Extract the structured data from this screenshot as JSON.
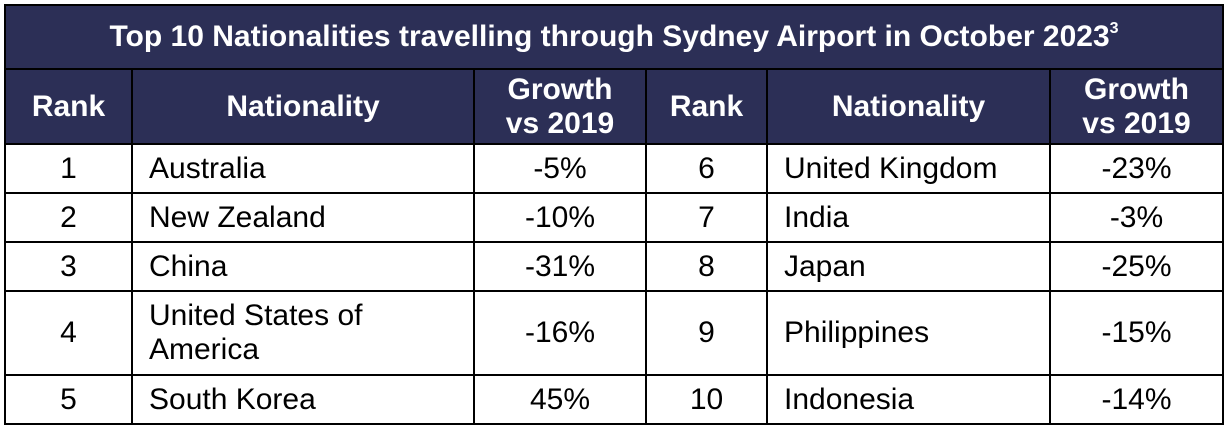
{
  "table": {
    "title": "Top 10 Nationalities travelling through Sydney Airport in October 2023",
    "title_footnote": "3",
    "headers": {
      "rank": "Rank",
      "nationality": "Nationality",
      "growth_line1": "Growth",
      "growth_line2": "vs 2019"
    },
    "rows": [
      {
        "left": {
          "rank": "1",
          "nationality": "Australia",
          "growth": "-5%"
        },
        "right": {
          "rank": "6",
          "nationality": "United Kingdom",
          "growth": "-23%"
        }
      },
      {
        "left": {
          "rank": "2",
          "nationality": "New Zealand",
          "growth": "-10%"
        },
        "right": {
          "rank": "7",
          "nationality": "India",
          "growth": "-3%"
        }
      },
      {
        "left": {
          "rank": "3",
          "nationality": "China",
          "growth": "-31%"
        },
        "right": {
          "rank": "8",
          "nationality": "Japan",
          "growth": "-25%"
        }
      },
      {
        "left": {
          "rank": "4",
          "nationality_line1": "United States of",
          "nationality_line2": "America",
          "growth": "-16%"
        },
        "right": {
          "rank": "9",
          "nationality": "Philippines",
          "growth": "-15%"
        }
      },
      {
        "left": {
          "rank": "5",
          "nationality": "South Korea",
          "growth": "45%"
        },
        "right": {
          "rank": "10",
          "nationality": "Indonesia",
          "growth": "-14%"
        }
      }
    ]
  },
  "colors": {
    "header_background": "#2c2f56",
    "header_text": "#ffffff",
    "border": "#000000"
  }
}
